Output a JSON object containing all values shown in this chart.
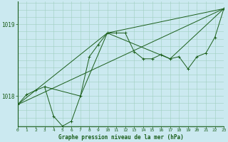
{
  "bg_color": "#cbe9f0",
  "grid_color_v": "#9fcfbf",
  "grid_color_h": "#9fcfbf",
  "line_color": "#1a5e1a",
  "title": "Graphe pression niveau de la mer (hPa)",
  "ytick_labels": [
    "1018",
    "1019"
  ],
  "ytick_vals": [
    1018.0,
    1019.0
  ],
  "xlim": [
    0,
    23
  ],
  "ylim": [
    1017.58,
    1019.32
  ],
  "figsize": [
    3.2,
    2.0
  ],
  "dpi": 100,
  "series": [
    {
      "x": [
        0,
        1,
        2,
        3,
        4,
        5,
        6,
        7,
        8,
        9,
        10,
        11,
        12,
        13,
        14,
        15,
        16,
        17,
        18,
        19,
        20,
        21,
        22,
        23
      ],
      "y": [
        1017.88,
        1018.02,
        1018.08,
        1018.13,
        1017.72,
        1017.58,
        1017.65,
        1018.0,
        1018.55,
        1018.72,
        1018.88,
        1018.88,
        1018.88,
        1018.62,
        1018.52,
        1018.52,
        1018.58,
        1018.52,
        1018.55,
        1018.38,
        1018.55,
        1018.6,
        1018.82,
        1019.22
      ],
      "marker": true
    },
    {
      "x": [
        0,
        23
      ],
      "y": [
        1017.88,
        1019.22
      ],
      "marker": false
    },
    {
      "x": [
        0,
        10,
        23
      ],
      "y": [
        1017.88,
        1018.88,
        1019.22
      ],
      "marker": false
    },
    {
      "x": [
        3,
        7,
        10,
        17,
        23
      ],
      "y": [
        1018.13,
        1018.0,
        1018.88,
        1018.52,
        1019.22
      ],
      "marker": false
    }
  ]
}
